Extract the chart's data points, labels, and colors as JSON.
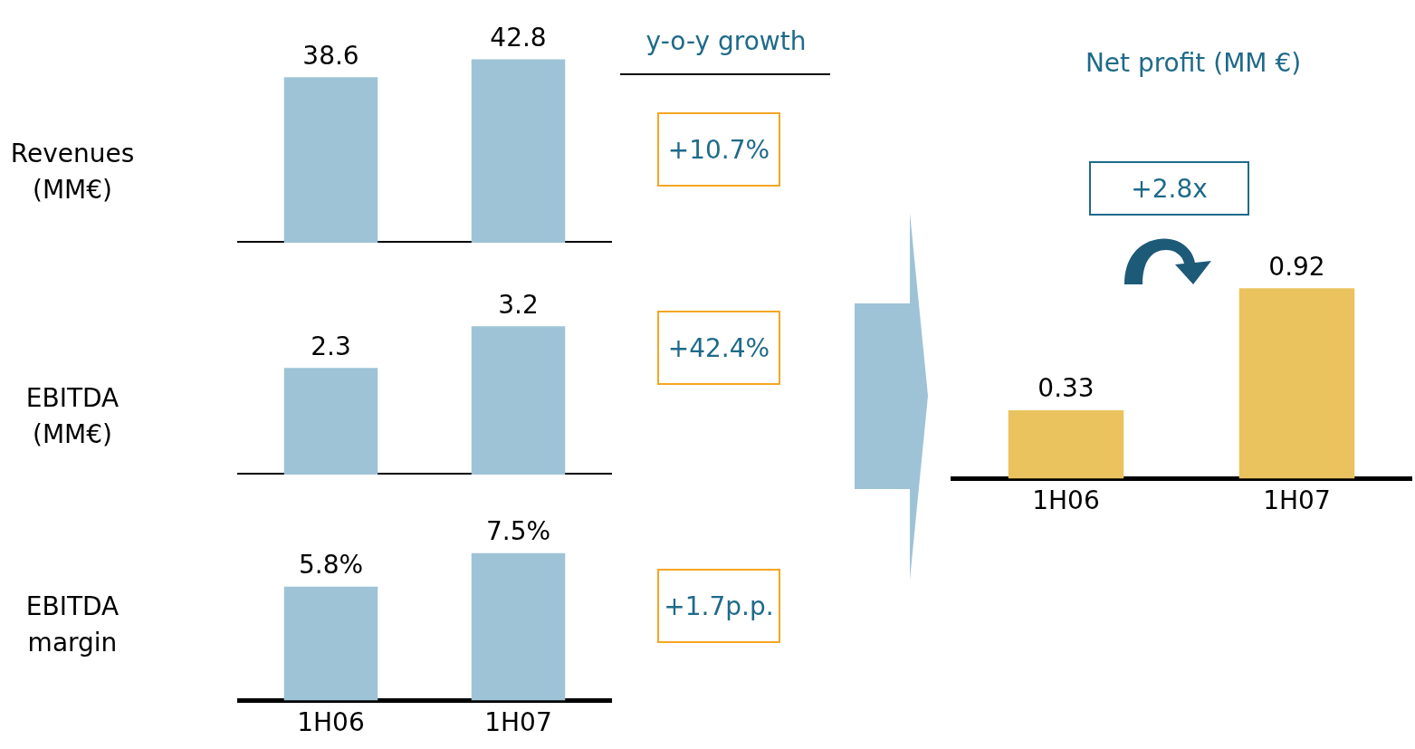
{
  "chart_data": [
    {
      "type": "bar",
      "ylabel": "Revenues\n(MM€)",
      "categories": [
        null,
        null
      ],
      "values": [
        38.6,
        42.8
      ],
      "color": "#9ec3d6",
      "data_labels": true,
      "tick_labels": false,
      "annotations": [
        "y-o-y growth",
        "+10.7%"
      ]
    },
    {
      "type": "bar",
      "ylabel": "EBITDA\n(MM€)",
      "categories": [
        null,
        null
      ],
      "values": [
        2.3,
        3.2
      ],
      "color": "#9ec3d6",
      "data_labels": true,
      "tick_labels": false,
      "annotations": [
        "+42.4%"
      ]
    },
    {
      "type": "bar",
      "ylabel": "EBITDA\nmargin",
      "categories": [
        "1H06",
        "1H07"
      ],
      "values": [
        5.8,
        7.5
      ],
      "value_labels": [
        "5.8%",
        "7.5%"
      ],
      "color": "#9ec3d6",
      "tick_labels": "x",
      "annotations": [
        "+1.7p.p."
      ]
    },
    {
      "type": "bar",
      "title": "Net profit (MM €)",
      "categories": [
        "1H06",
        "1H07"
      ],
      "values": [
        0.33,
        0.92
      ],
      "color": "#ebc35e",
      "data_labels": true,
      "tick_labels": "x",
      "annotations": [
        "+2.8x"
      ]
    }
  ]
}
